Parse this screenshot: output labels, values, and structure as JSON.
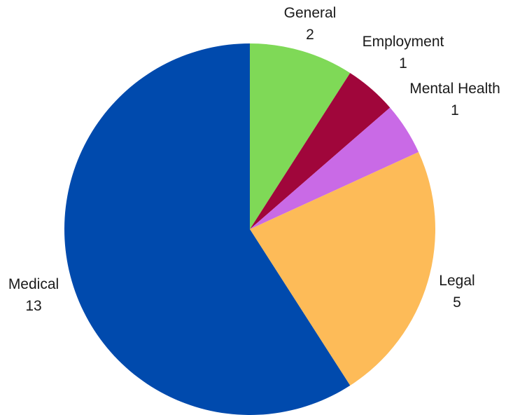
{
  "chart_data": {
    "type": "pie",
    "title": "",
    "slices": [
      {
        "label": "General",
        "value": 2,
        "color": "#7fd957"
      },
      {
        "label": "Employment",
        "value": 1,
        "color": "#a0063b"
      },
      {
        "label": "Mental Health",
        "value": 1,
        "color": "#c96ae6"
      },
      {
        "label": "Legal",
        "value": 5,
        "color": "#fdbb58"
      },
      {
        "label": "Medical",
        "value": 13,
        "color": "#004aad"
      }
    ],
    "start": "12 o'clock",
    "direction": "clockwise",
    "legend": "none",
    "data_labels": "outside, name above value"
  }
}
